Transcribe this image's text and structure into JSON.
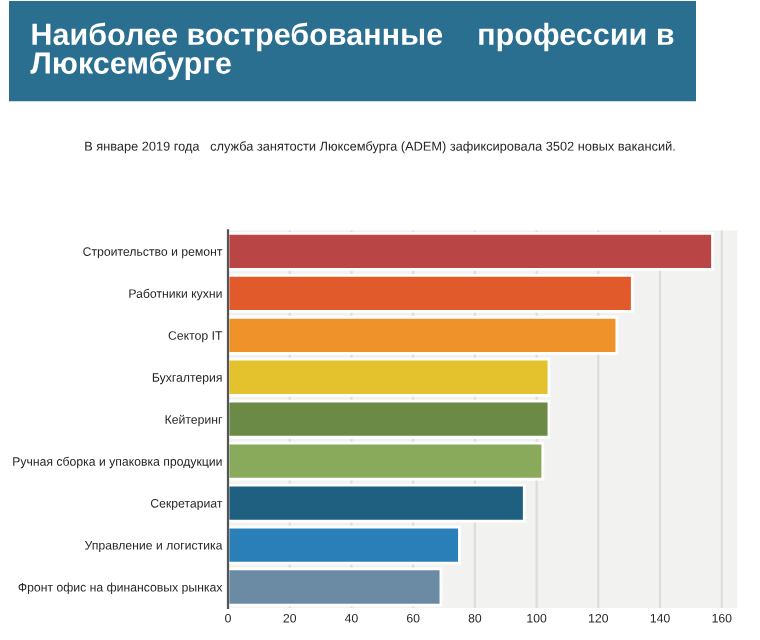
{
  "chart_data": {
    "type": "bar",
    "orientation": "horizontal",
    "title": "Наиболее востребованные    профессии в Люксембурге",
    "subtitle": "В январе 2019 года   служба занятости Люксембурга (ADEM) зафиксировала 3502 новых вакансий.",
    "categories": [
      "Строительство и ремонт",
      "Работники кухни",
      "Сектор IT",
      "Бухгалтерия",
      "Кейтеринг",
      "Ручная сборка и упаковка продукции",
      "Секретариат",
      "Управление и логистика",
      "Фронт офис на финансовых рынках"
    ],
    "values": [
      157,
      131,
      126,
      104,
      104,
      102,
      96,
      75,
      69
    ],
    "colors": [
      "#b94545",
      "#e05a2b",
      "#f0922a",
      "#e3c22e",
      "#6b8a45",
      "#88aa5a",
      "#1f5f80",
      "#2a7fb8",
      "#6a8ba3"
    ],
    "xlim": [
      0,
      165
    ],
    "xticks": [
      0,
      20,
      40,
      60,
      80,
      100,
      120,
      140,
      160
    ],
    "grid": "x"
  }
}
